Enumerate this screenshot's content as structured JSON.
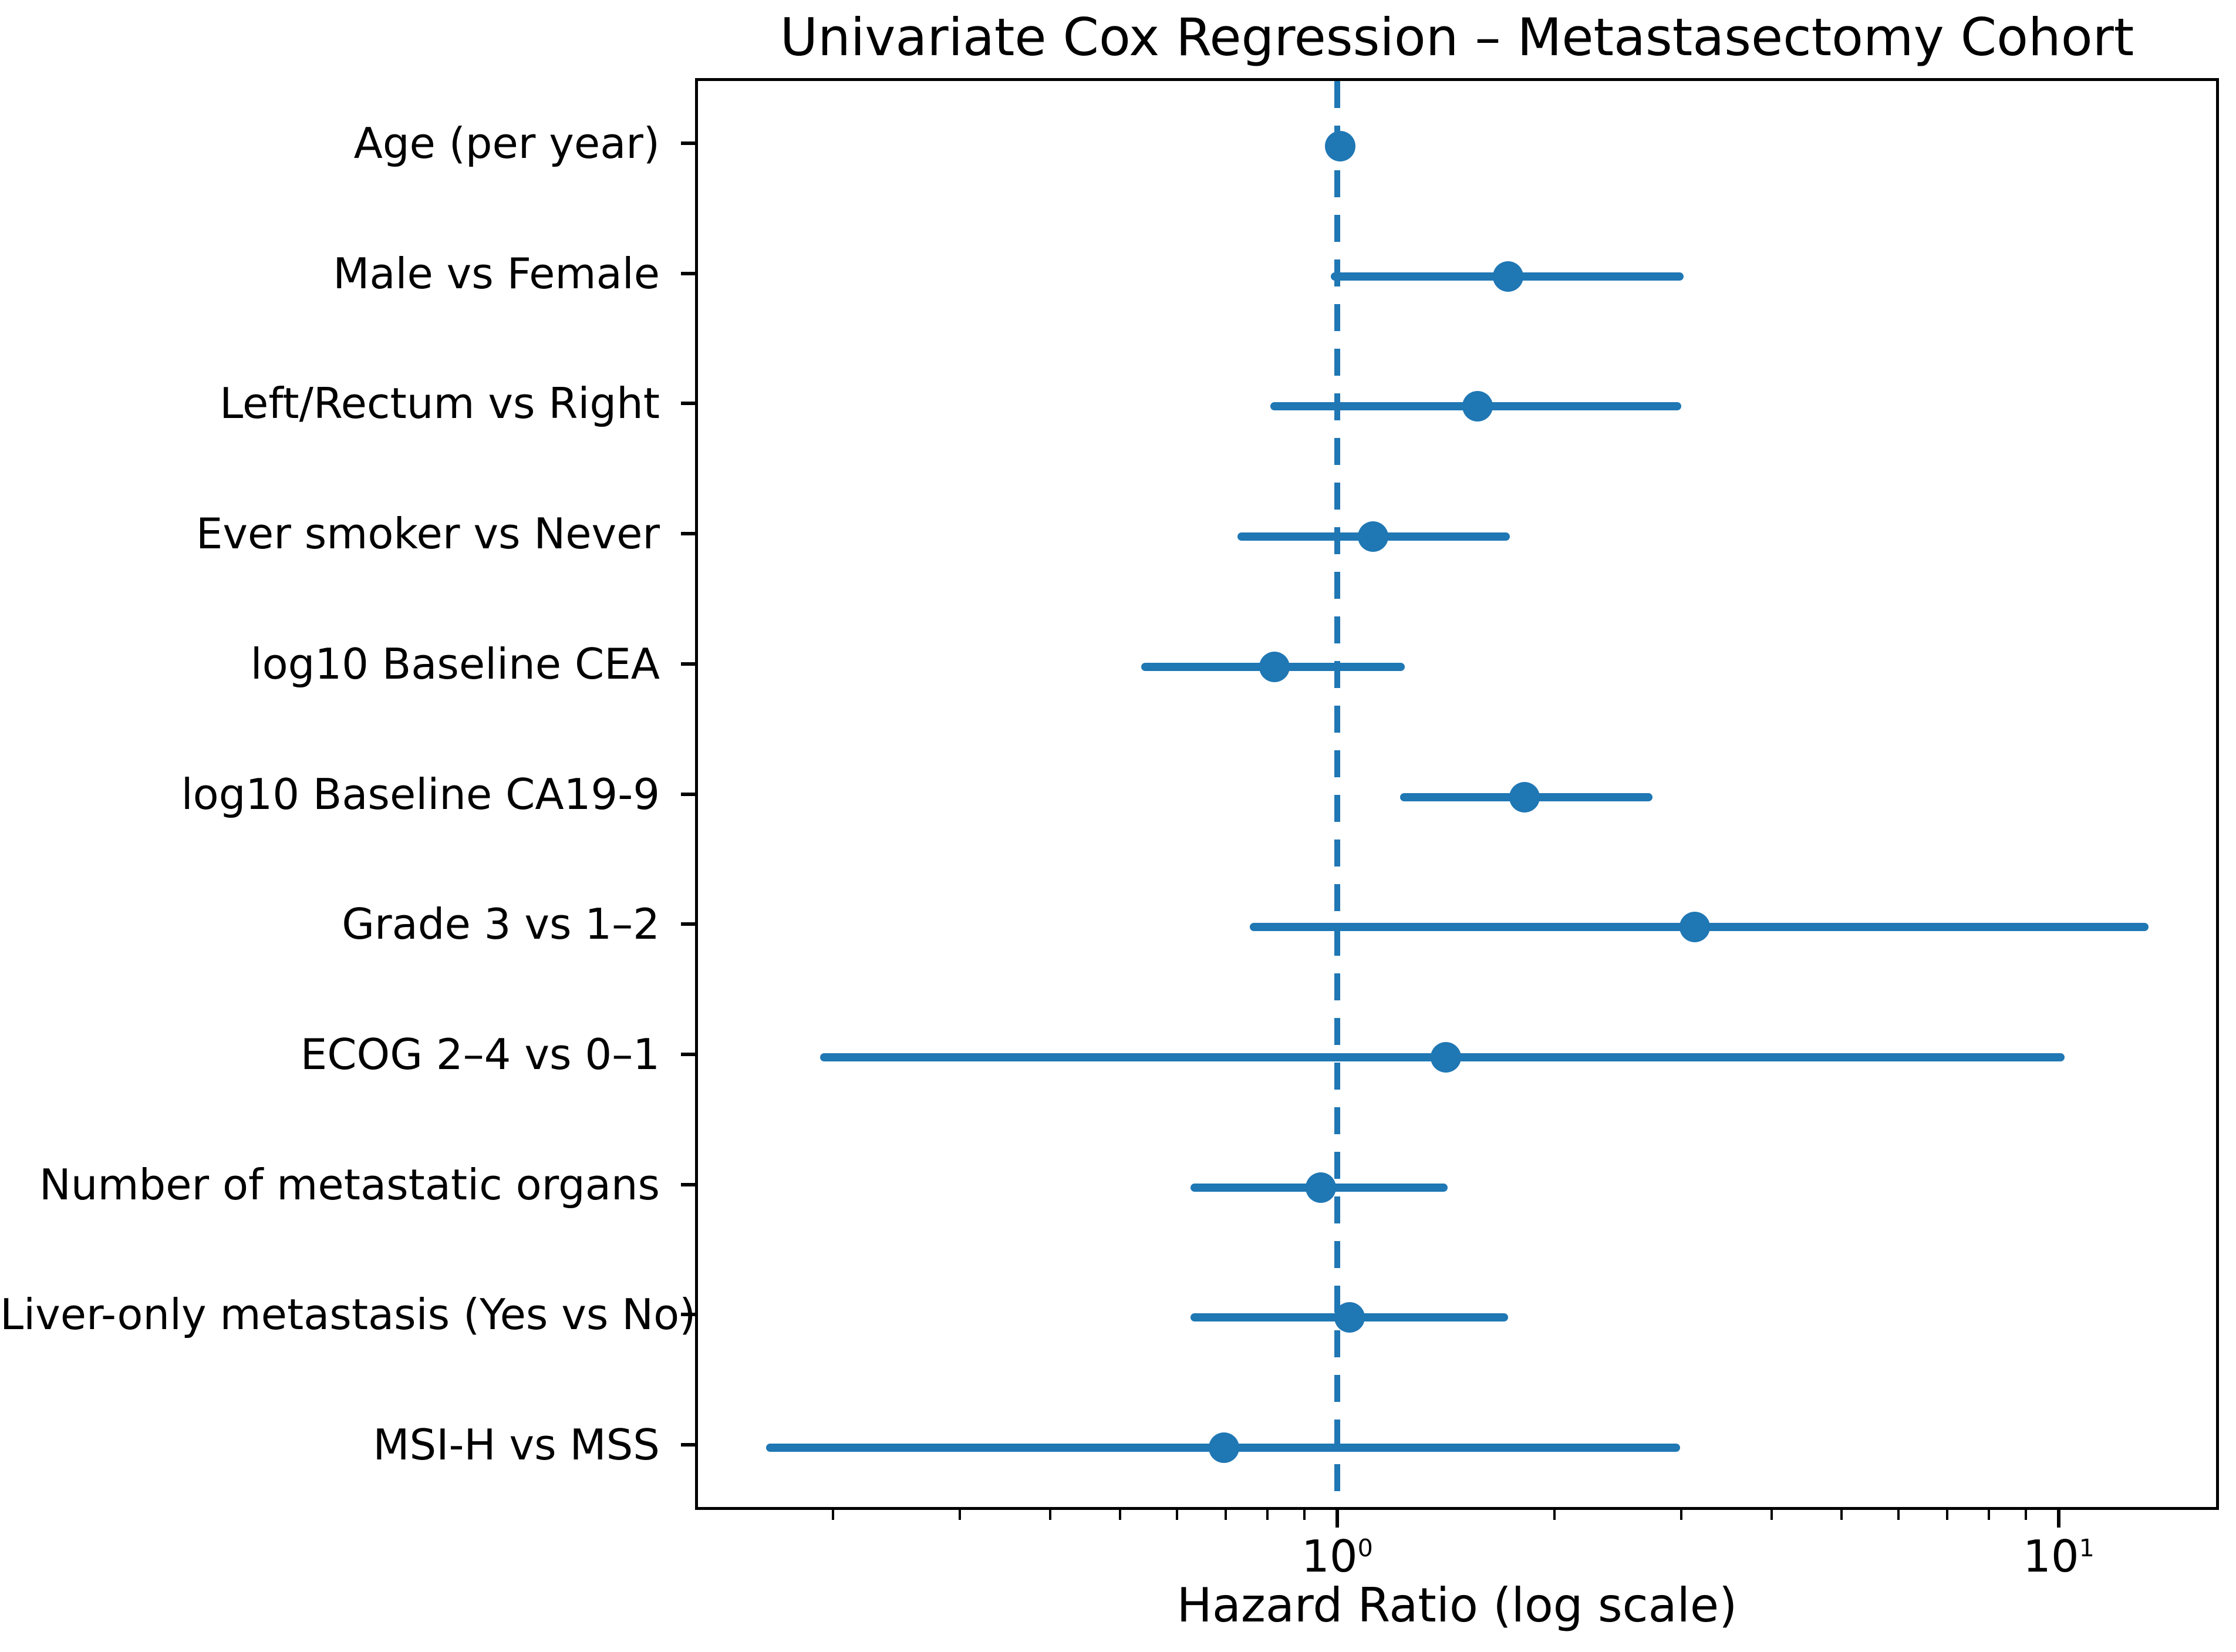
{
  "title": "Univariate Cox Regression – Metastasectomy Cohort",
  "colors": {
    "accent": "#1f77b4",
    "axis": "#000000",
    "background": "#ffffff"
  },
  "x_axis": {
    "label": "Hazard Ratio (log scale)",
    "scale": "log",
    "lim": [
      0.129,
      16.7
    ],
    "major_ticks": [
      {
        "value": 1,
        "base": "10",
        "exp": "0"
      },
      {
        "value": 10,
        "base": "10",
        "exp": "1"
      }
    ],
    "minor_ticks": [
      0.2,
      0.3,
      0.4,
      0.5,
      0.6,
      0.7,
      0.8,
      0.9,
      2,
      3,
      4,
      5,
      6,
      7,
      8,
      9
    ]
  },
  "reference_line": 1.0,
  "chart_data": {
    "type": "scatter",
    "subtype": "forest-plot",
    "title": "Univariate Cox Regression – Metastasectomy Cohort",
    "xlabel": "Hazard Ratio (log scale)",
    "xscale": "log",
    "xlim": [
      0.129,
      16.7
    ],
    "grid": false,
    "legend": false,
    "reference_line": 1.0,
    "categories": [
      "Age (per year)",
      "Male vs Female",
      "Left/Rectum vs Right",
      "Ever smoker vs Never",
      "log10 Baseline CEA",
      "log10 Baseline CA19-9",
      "Grade 3 vs 1–2",
      "ECOG 2–4 vs 0–1",
      "Number of metastatic organs",
      "Liver-only metastasis (Yes vs No)",
      "MSI-H vs MSS"
    ],
    "points": [
      {
        "label": "Age (per year)",
        "hr": 1.0,
        "ci_low": 0.99,
        "ci_high": 1.02
      },
      {
        "label": "Male vs Female",
        "hr": 1.71,
        "ci_low": 0.97,
        "ci_high": 2.99
      },
      {
        "label": "Left/Rectum vs Right",
        "hr": 1.55,
        "ci_low": 0.8,
        "ci_high": 2.97
      },
      {
        "label": "Ever smoker vs Never",
        "hr": 1.11,
        "ci_low": 0.72,
        "ci_high": 1.72
      },
      {
        "label": "log10 Baseline CEA",
        "hr": 0.81,
        "ci_low": 0.53,
        "ci_high": 1.23
      },
      {
        "label": "log10 Baseline CA19-9",
        "hr": 1.8,
        "ci_low": 1.21,
        "ci_high": 2.71
      },
      {
        "label": "Grade 3 vs 1–2",
        "hr": 3.1,
        "ci_low": 0.75,
        "ci_high": 13.2
      },
      {
        "label": "ECOG 2–4 vs 0–1",
        "hr": 1.4,
        "ci_low": 0.19,
        "ci_high": 10.1
      },
      {
        "label": "Number of metastatic organs",
        "hr": 0.94,
        "ci_low": 0.62,
        "ci_high": 1.41
      },
      {
        "label": "Liver-only metastasis (Yes vs No)",
        "hr": 1.03,
        "ci_low": 0.62,
        "ci_high": 1.71
      },
      {
        "label": "MSI-H vs MSS",
        "hr": 0.69,
        "ci_low": 0.16,
        "ci_high": 2.96
      }
    ]
  }
}
